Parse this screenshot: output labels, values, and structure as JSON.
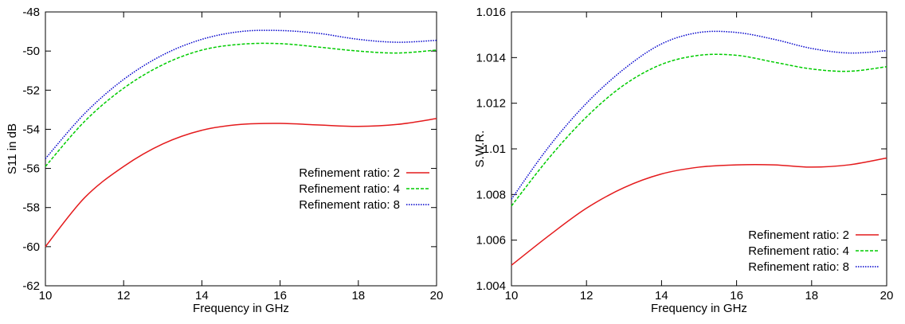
{
  "chart_data": [
    {
      "type": "line",
      "xlabel": "Frequency in GHz",
      "ylabel": "S11 in dB",
      "xlim": [
        10,
        20
      ],
      "ylim": [
        -62,
        -48
      ],
      "xticks": [
        10,
        12,
        14,
        16,
        18,
        20
      ],
      "yticks": [
        -62,
        -60,
        -58,
        -56,
        -54,
        -52,
        -50,
        -48
      ],
      "grid": false,
      "legend_position": "right",
      "series": [
        {
          "name": "Refinement ratio: 2",
          "color": "#e41a1c",
          "dash": "solid",
          "x": [
            10,
            11,
            12,
            13,
            14,
            15,
            16,
            17,
            18,
            19,
            20
          ],
          "y": [
            -60.0,
            -57.5,
            -55.9,
            -54.75,
            -54.05,
            -53.75,
            -53.7,
            -53.78,
            -53.85,
            -53.75,
            -53.45
          ]
        },
        {
          "name": "Refinement ratio: 4",
          "color": "#00cc00",
          "dash": "dashed",
          "x": [
            10,
            11,
            12,
            13,
            14,
            15,
            16,
            17,
            18,
            19,
            20
          ],
          "y": [
            -55.9,
            -53.6,
            -51.9,
            -50.7,
            -49.95,
            -49.65,
            -49.62,
            -49.8,
            -50.0,
            -50.1,
            -49.95
          ]
        },
        {
          "name": "Refinement ratio: 8",
          "color": "#0000cc",
          "dash": "dotted",
          "x": [
            10,
            11,
            12,
            13,
            14,
            15,
            16,
            17,
            18,
            19,
            20
          ],
          "y": [
            -55.5,
            -53.2,
            -51.45,
            -50.2,
            -49.4,
            -49.0,
            -48.95,
            -49.1,
            -49.4,
            -49.55,
            -49.45
          ]
        }
      ]
    },
    {
      "type": "line",
      "xlabel": "Frequency in GHz",
      "ylabel": "S.W.R.",
      "xlim": [
        10,
        20
      ],
      "ylim": [
        1.004,
        1.016
      ],
      "xticks": [
        10,
        12,
        14,
        16,
        18,
        20
      ],
      "yticks": [
        "1.004",
        "1.006",
        "1.008",
        "1.01",
        "1.012",
        "1.014",
        "1.016"
      ],
      "grid": false,
      "legend_position": "bottom-right",
      "series": [
        {
          "name": "Refinement ratio: 2",
          "color": "#e41a1c",
          "dash": "solid",
          "x": [
            10,
            11,
            12,
            13,
            14,
            15,
            16,
            17,
            18,
            19,
            20
          ],
          "y": [
            1.0049,
            1.0062,
            1.0074,
            1.0083,
            1.0089,
            1.0092,
            1.0093,
            1.0093,
            1.0092,
            1.0093,
            1.0096
          ]
        },
        {
          "name": "Refinement ratio: 4",
          "color": "#00cc00",
          "dash": "dashed",
          "x": [
            10,
            11,
            12,
            13,
            14,
            15,
            16,
            17,
            18,
            19,
            20
          ],
          "y": [
            1.0075,
            1.0096,
            1.0114,
            1.0128,
            1.0137,
            1.0141,
            1.0141,
            1.0138,
            1.0135,
            1.0134,
            1.0136
          ]
        },
        {
          "name": "Refinement ratio: 8",
          "color": "#0000cc",
          "dash": "dotted",
          "x": [
            10,
            11,
            12,
            13,
            14,
            15,
            16,
            17,
            18,
            19,
            20
          ],
          "y": [
            1.0078,
            1.0101,
            1.012,
            1.0135,
            1.0146,
            1.0151,
            1.0151,
            1.0148,
            1.0144,
            1.0142,
            1.0143
          ]
        }
      ]
    }
  ]
}
